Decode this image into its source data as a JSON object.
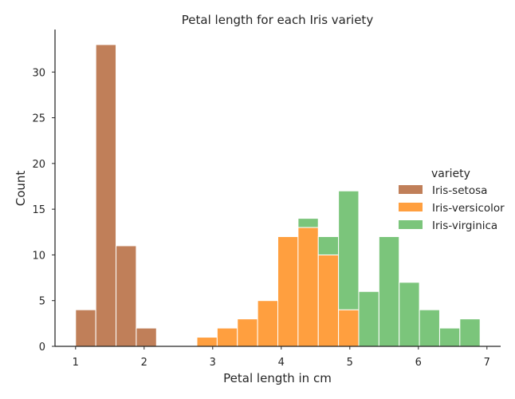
{
  "chart_data": {
    "type": "bar",
    "subtype": "stacked-histogram",
    "title": "Petal length for each Iris variety",
    "xlabel": "Petal length in cm",
    "ylabel": "Count",
    "xlim": [
      0.7,
      7.2
    ],
    "ylim": [
      0,
      34.65
    ],
    "xticks": [
      1,
      2,
      3,
      4,
      5,
      6,
      7
    ],
    "yticks": [
      0,
      5,
      10,
      15,
      20,
      25,
      30
    ],
    "grid": false,
    "legend": {
      "title": "variety",
      "placement": "center-right"
    },
    "bin_edges": [
      1.0,
      1.295,
      1.59,
      1.885,
      2.18,
      2.475,
      2.77,
      3.065,
      3.36,
      3.655,
      3.95,
      4.245,
      4.54,
      4.835,
      5.13,
      5.425,
      5.72,
      6.015,
      6.31,
      6.605,
      6.9
    ],
    "series": [
      {
        "name": "Iris-setosa",
        "color": "#c07f59",
        "values": [
          4,
          33,
          11,
          2,
          0,
          0,
          0,
          0,
          0,
          0,
          0,
          0,
          0,
          0,
          0,
          0,
          0,
          0,
          0,
          0
        ]
      },
      {
        "name": "Iris-versicolor",
        "color": "#ff9f3f",
        "values": [
          0,
          0,
          0,
          0,
          0,
          0,
          1,
          2,
          3,
          5,
          12,
          13,
          10,
          4,
          0,
          0,
          0,
          0,
          0,
          0
        ]
      },
      {
        "name": "Iris-virginica",
        "color": "#7bc57b",
        "values": [
          0,
          0,
          0,
          0,
          0,
          0,
          0,
          0,
          0,
          0,
          0,
          1,
          2,
          13,
          6,
          12,
          7,
          4,
          2,
          3
        ]
      }
    ]
  }
}
